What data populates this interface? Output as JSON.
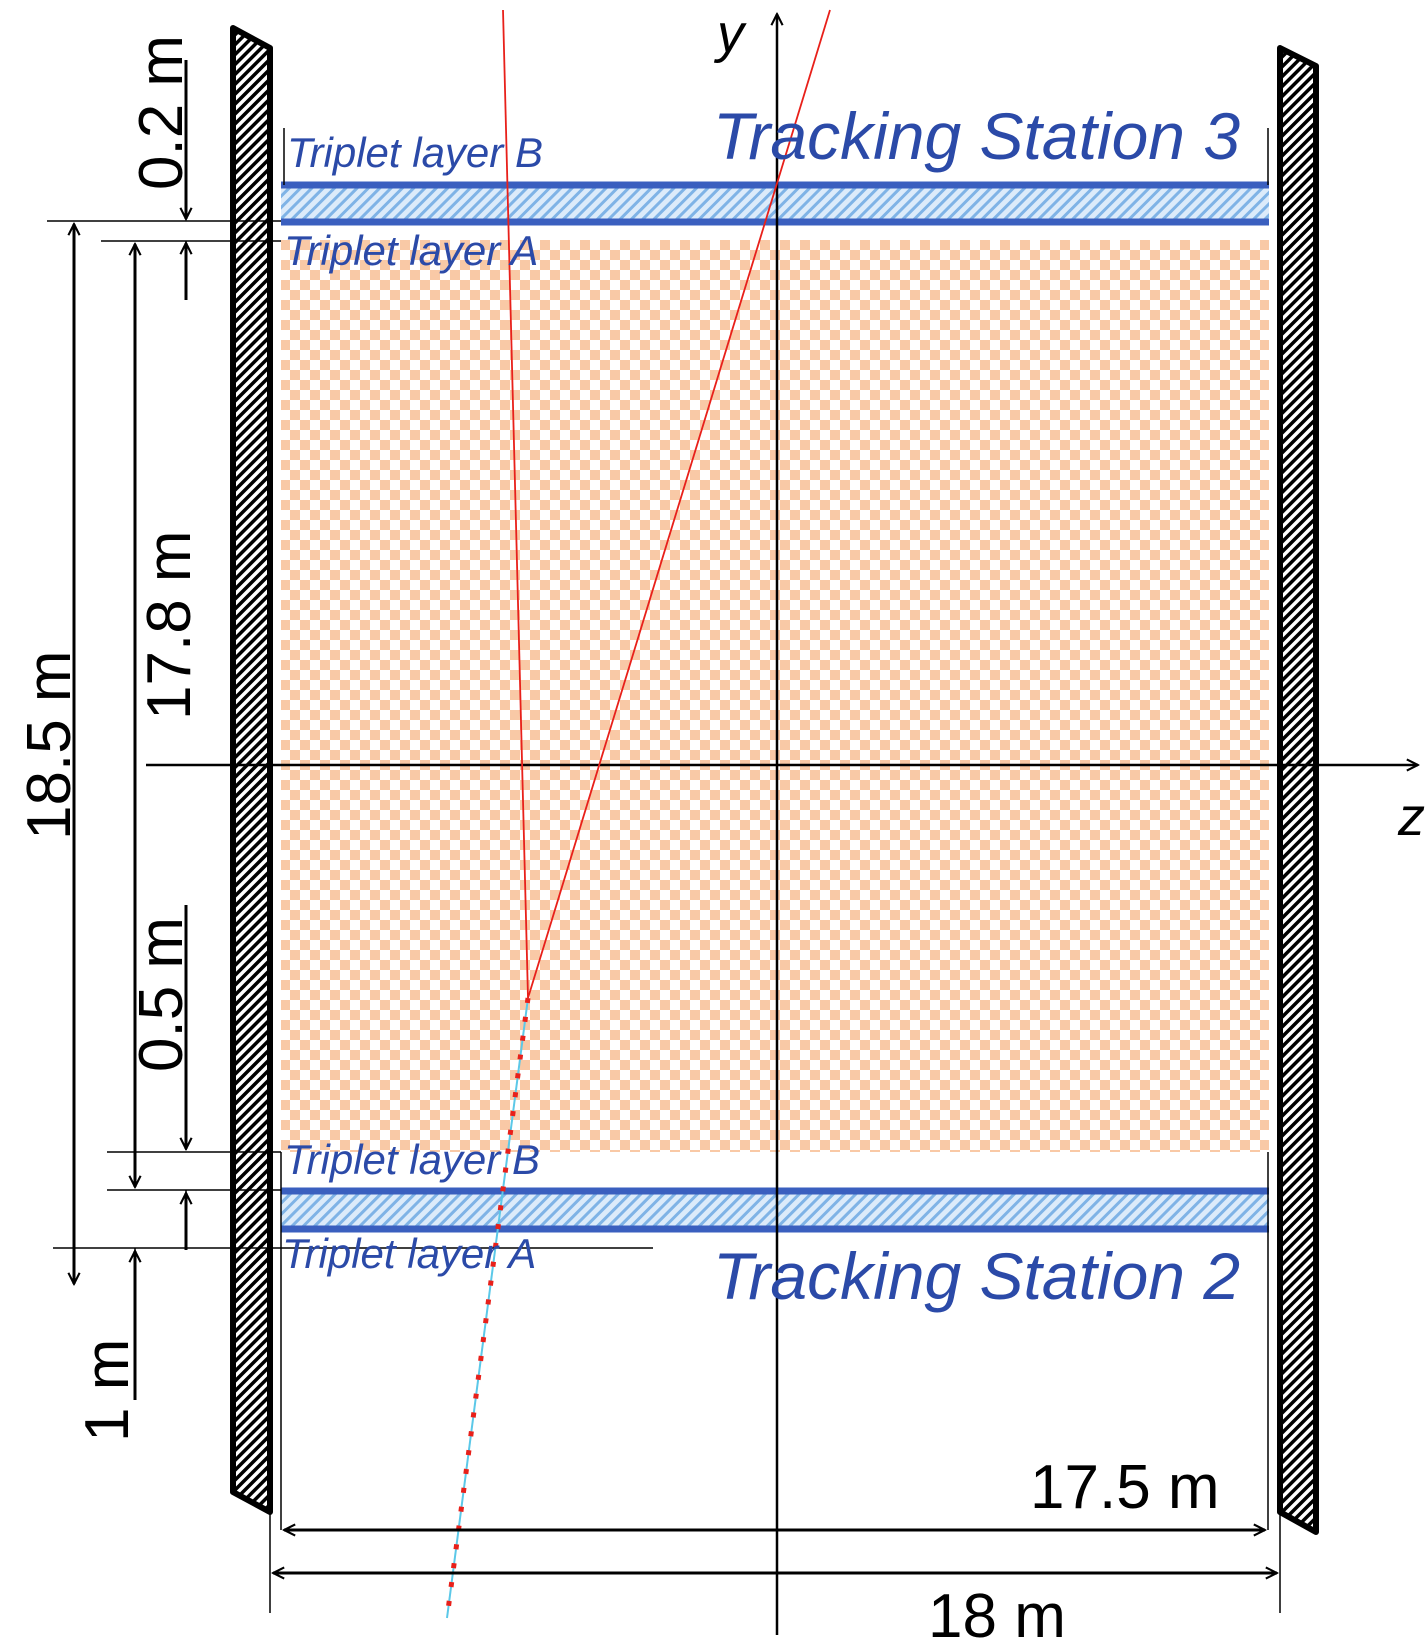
{
  "axes": {
    "y_label": "y",
    "z_label": "z"
  },
  "stations": [
    {
      "name": "Tracking Station 3",
      "layer_top": "Triplet layer B",
      "layer_bottom": "Triplet layer A"
    },
    {
      "name": "Tracking Station 2",
      "layer_top": "Triplet layer B",
      "layer_bottom": "Triplet layer A"
    }
  ],
  "dimensions": {
    "d_0_2": "0.2 m",
    "d_18_5": "18.5 m",
    "d_17_8": "17.8 m",
    "d_0_5": "0.5 m",
    "d_1": "1 m",
    "d_17_5": "17.5 m",
    "d_18": "18 m"
  },
  "colors": {
    "layer_blue": "#3a5fbf",
    "hatch_blue": "#7fb3e6",
    "fill_orange": "#f9c9a6",
    "track_red": "#e8201a",
    "track_cyan": "#5bc8e8",
    "text_blue": "#2b4aa8"
  }
}
